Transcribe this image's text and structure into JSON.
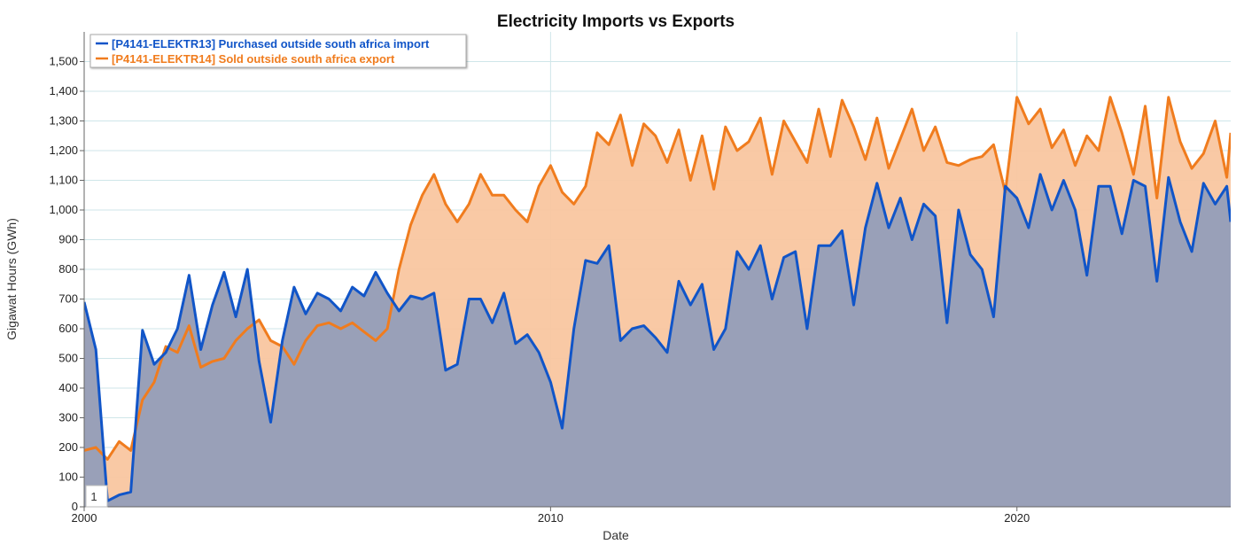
{
  "chart_data": {
    "type": "area",
    "title": "Electricity Imports vs Exports",
    "xlabel": "Date",
    "ylabel": "Gigawat Hours (GWh)",
    "xlim": [
      "2000-01",
      "2024-08"
    ],
    "ylim": [
      0,
      1600
    ],
    "x_ticks": [
      {
        "value": "2000-01",
        "label": "2000"
      },
      {
        "value": "2010-01",
        "label": "2010"
      },
      {
        "value": "2020-01",
        "label": "2020"
      }
    ],
    "y_ticks": [
      {
        "value": 0,
        "label": "0"
      },
      {
        "value": 100,
        "label": "100"
      },
      {
        "value": 200,
        "label": "200"
      },
      {
        "value": 300,
        "label": "300"
      },
      {
        "value": 400,
        "label": "400"
      },
      {
        "value": 500,
        "label": "500"
      },
      {
        "value": 600,
        "label": "600"
      },
      {
        "value": 700,
        "label": "700"
      },
      {
        "value": 800,
        "label": "800"
      },
      {
        "value": 900,
        "label": "900"
      },
      {
        "value": 1000,
        "label": "1,000"
      },
      {
        "value": 1100,
        "label": "1,100"
      },
      {
        "value": 1200,
        "label": "1,200"
      },
      {
        "value": 1300,
        "label": "1,300"
      },
      {
        "value": 1400,
        "label": "1,400"
      },
      {
        "value": 1500,
        "label": "1,500"
      }
    ],
    "grid": true,
    "legend_position": "top-left",
    "page_indicator": "1",
    "series": [
      {
        "name": "[P4141-ELEKTR13] Purchased outside south africa import",
        "color": "#1155c8",
        "fill": "#99a0b8",
        "points": [
          [
            "2000-01",
            690
          ],
          [
            "2000-04",
            530
          ],
          [
            "2000-07",
            20
          ],
          [
            "2000-10",
            40
          ],
          [
            "2001-01",
            50
          ],
          [
            "2001-04",
            595
          ],
          [
            "2001-07",
            480
          ],
          [
            "2001-10",
            520
          ],
          [
            "2002-01",
            600
          ],
          [
            "2002-04",
            780
          ],
          [
            "2002-07",
            530
          ],
          [
            "2002-10",
            680
          ],
          [
            "2003-01",
            790
          ],
          [
            "2003-04",
            640
          ],
          [
            "2003-07",
            800
          ],
          [
            "2003-10",
            490
          ],
          [
            "2004-01",
            285
          ],
          [
            "2004-04",
            560
          ],
          [
            "2004-07",
            740
          ],
          [
            "2004-10",
            650
          ],
          [
            "2005-01",
            720
          ],
          [
            "2005-04",
            700
          ],
          [
            "2005-07",
            660
          ],
          [
            "2005-10",
            740
          ],
          [
            "2006-01",
            710
          ],
          [
            "2006-04",
            790
          ],
          [
            "2006-07",
            720
          ],
          [
            "2006-10",
            660
          ],
          [
            "2007-01",
            710
          ],
          [
            "2007-04",
            700
          ],
          [
            "2007-07",
            720
          ],
          [
            "2007-10",
            460
          ],
          [
            "2008-01",
            480
          ],
          [
            "2008-04",
            700
          ],
          [
            "2008-07",
            700
          ],
          [
            "2008-10",
            620
          ],
          [
            "2009-01",
            720
          ],
          [
            "2009-04",
            550
          ],
          [
            "2009-07",
            580
          ],
          [
            "2009-10",
            520
          ],
          [
            "2010-01",
            420
          ],
          [
            "2010-04",
            265
          ],
          [
            "2010-07",
            600
          ],
          [
            "2010-10",
            830
          ],
          [
            "2011-01",
            820
          ],
          [
            "2011-04",
            880
          ],
          [
            "2011-07",
            560
          ],
          [
            "2011-10",
            600
          ],
          [
            "2012-01",
            610
          ],
          [
            "2012-04",
            570
          ],
          [
            "2012-07",
            520
          ],
          [
            "2012-10",
            760
          ],
          [
            "2013-01",
            680
          ],
          [
            "2013-04",
            750
          ],
          [
            "2013-07",
            530
          ],
          [
            "2013-10",
            600
          ],
          [
            "2014-01",
            860
          ],
          [
            "2014-04",
            800
          ],
          [
            "2014-07",
            880
          ],
          [
            "2014-10",
            700
          ],
          [
            "2015-01",
            840
          ],
          [
            "2015-04",
            860
          ],
          [
            "2015-07",
            600
          ],
          [
            "2015-10",
            880
          ],
          [
            "2016-01",
            880
          ],
          [
            "2016-04",
            930
          ],
          [
            "2016-07",
            680
          ],
          [
            "2016-10",
            940
          ],
          [
            "2017-01",
            1090
          ],
          [
            "2017-04",
            940
          ],
          [
            "2017-07",
            1040
          ],
          [
            "2017-10",
            900
          ],
          [
            "2018-01",
            1020
          ],
          [
            "2018-04",
            980
          ],
          [
            "2018-07",
            620
          ],
          [
            "2018-10",
            1000
          ],
          [
            "2019-01",
            850
          ],
          [
            "2019-04",
            800
          ],
          [
            "2019-07",
            640
          ],
          [
            "2019-10",
            1080
          ],
          [
            "2020-01",
            1040
          ],
          [
            "2020-04",
            940
          ],
          [
            "2020-07",
            1120
          ],
          [
            "2020-10",
            1000
          ],
          [
            "2021-01",
            1100
          ],
          [
            "2021-04",
            1000
          ],
          [
            "2021-07",
            780
          ],
          [
            "2021-10",
            1080
          ],
          [
            "2022-01",
            1080
          ],
          [
            "2022-04",
            920
          ],
          [
            "2022-07",
            1100
          ],
          [
            "2022-10",
            1080
          ],
          [
            "2023-01",
            760
          ],
          [
            "2023-04",
            1110
          ],
          [
            "2023-07",
            960
          ],
          [
            "2023-10",
            860
          ],
          [
            "2024-01",
            1090
          ],
          [
            "2024-04",
            1020
          ],
          [
            "2024-07",
            1080
          ],
          [
            "2024-08",
            960
          ]
        ]
      },
      {
        "name": "[P4141-ELEKTR14] Sold outside south africa export",
        "color": "#f07c1e",
        "fill": "#f9c6a0",
        "points": [
          [
            "2000-01",
            190
          ],
          [
            "2000-04",
            200
          ],
          [
            "2000-07",
            160
          ],
          [
            "2000-10",
            220
          ],
          [
            "2001-01",
            190
          ],
          [
            "2001-04",
            360
          ],
          [
            "2001-07",
            420
          ],
          [
            "2001-10",
            540
          ],
          [
            "2002-01",
            520
          ],
          [
            "2002-04",
            610
          ],
          [
            "2002-07",
            470
          ],
          [
            "2002-10",
            490
          ],
          [
            "2003-01",
            500
          ],
          [
            "2003-04",
            560
          ],
          [
            "2003-07",
            600
          ],
          [
            "2003-10",
            630
          ],
          [
            "2004-01",
            560
          ],
          [
            "2004-04",
            540
          ],
          [
            "2004-07",
            480
          ],
          [
            "2004-10",
            560
          ],
          [
            "2005-01",
            610
          ],
          [
            "2005-04",
            620
          ],
          [
            "2005-07",
            600
          ],
          [
            "2005-10",
            620
          ],
          [
            "2006-01",
            590
          ],
          [
            "2006-04",
            560
          ],
          [
            "2006-07",
            600
          ],
          [
            "2006-10",
            800
          ],
          [
            "2007-01",
            950
          ],
          [
            "2007-04",
            1050
          ],
          [
            "2007-07",
            1120
          ],
          [
            "2007-10",
            1020
          ],
          [
            "2008-01",
            960
          ],
          [
            "2008-04",
            1020
          ],
          [
            "2008-07",
            1120
          ],
          [
            "2008-10",
            1050
          ],
          [
            "2009-01",
            1050
          ],
          [
            "2009-04",
            1000
          ],
          [
            "2009-07",
            960
          ],
          [
            "2009-10",
            1080
          ],
          [
            "2010-01",
            1150
          ],
          [
            "2010-04",
            1060
          ],
          [
            "2010-07",
            1020
          ],
          [
            "2010-10",
            1080
          ],
          [
            "2011-01",
            1260
          ],
          [
            "2011-04",
            1220
          ],
          [
            "2011-07",
            1320
          ],
          [
            "2011-10",
            1150
          ],
          [
            "2012-01",
            1290
          ],
          [
            "2012-04",
            1250
          ],
          [
            "2012-07",
            1160
          ],
          [
            "2012-10",
            1270
          ],
          [
            "2013-01",
            1100
          ],
          [
            "2013-04",
            1250
          ],
          [
            "2013-07",
            1070
          ],
          [
            "2013-10",
            1280
          ],
          [
            "2014-01",
            1200
          ],
          [
            "2014-04",
            1230
          ],
          [
            "2014-07",
            1310
          ],
          [
            "2014-10",
            1120
          ],
          [
            "2015-01",
            1300
          ],
          [
            "2015-04",
            1230
          ],
          [
            "2015-07",
            1160
          ],
          [
            "2015-10",
            1340
          ],
          [
            "2016-01",
            1180
          ],
          [
            "2016-04",
            1370
          ],
          [
            "2016-07",
            1280
          ],
          [
            "2016-10",
            1170
          ],
          [
            "2017-01",
            1310
          ],
          [
            "2017-04",
            1140
          ],
          [
            "2017-07",
            1240
          ],
          [
            "2017-10",
            1340
          ],
          [
            "2018-01",
            1200
          ],
          [
            "2018-04",
            1280
          ],
          [
            "2018-07",
            1160
          ],
          [
            "2018-10",
            1150
          ],
          [
            "2019-01",
            1170
          ],
          [
            "2019-04",
            1180
          ],
          [
            "2019-07",
            1220
          ],
          [
            "2019-10",
            1060
          ],
          [
            "2020-01",
            1380
          ],
          [
            "2020-04",
            1290
          ],
          [
            "2020-07",
            1340
          ],
          [
            "2020-10",
            1210
          ],
          [
            "2021-01",
            1270
          ],
          [
            "2021-04",
            1150
          ],
          [
            "2021-07",
            1250
          ],
          [
            "2021-10",
            1200
          ],
          [
            "2022-01",
            1380
          ],
          [
            "2022-04",
            1260
          ],
          [
            "2022-07",
            1120
          ],
          [
            "2022-10",
            1350
          ],
          [
            "2023-01",
            1040
          ],
          [
            "2023-04",
            1380
          ],
          [
            "2023-07",
            1230
          ],
          [
            "2023-10",
            1140
          ],
          [
            "2024-01",
            1190
          ],
          [
            "2024-04",
            1300
          ],
          [
            "2024-07",
            1110
          ],
          [
            "2024-08",
            1260
          ]
        ]
      }
    ]
  }
}
